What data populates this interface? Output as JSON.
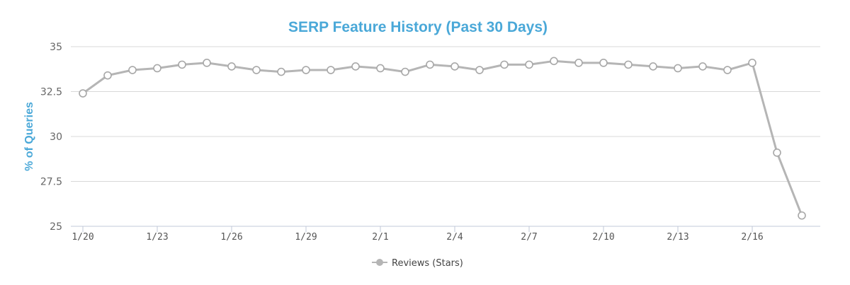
{
  "chart_data": {
    "type": "line",
    "title": "SERP Feature History (Past 30 Days)",
    "xlabel": "",
    "ylabel": "% of Queries",
    "ylim": [
      25,
      35
    ],
    "y_ticks": [
      "25",
      "27.5",
      "30",
      "32.5",
      "35"
    ],
    "y_tick_values": [
      25,
      27.5,
      30,
      32.5,
      35
    ],
    "x_ticks": [
      "1/20",
      "1/23",
      "1/26",
      "1/29",
      "2/1",
      "2/4",
      "2/7",
      "2/10",
      "2/13",
      "2/16"
    ],
    "x_tick_indices": [
      0,
      3,
      6,
      9,
      12,
      15,
      18,
      21,
      24,
      27
    ],
    "grid": true,
    "legend_position": "bottom-center",
    "categories": [
      "1/20",
      "1/21",
      "1/22",
      "1/23",
      "1/24",
      "1/25",
      "1/26",
      "1/27",
      "1/28",
      "1/29",
      "1/30",
      "1/31",
      "2/1",
      "2/2",
      "2/3",
      "2/4",
      "2/5",
      "2/6",
      "2/7",
      "2/8",
      "2/9",
      "2/10",
      "2/11",
      "2/12",
      "2/13",
      "2/14",
      "2/15",
      "2/16",
      "2/17",
      "2/18"
    ],
    "series": [
      {
        "name": "Reviews (Stars)",
        "color": "#b5b5b5",
        "values": [
          32.4,
          33.4,
          33.7,
          33.8,
          34.0,
          34.1,
          33.9,
          33.7,
          33.6,
          33.7,
          33.7,
          33.9,
          33.8,
          33.6,
          34.0,
          33.9,
          33.7,
          34.0,
          34.0,
          34.2,
          34.1,
          34.1,
          34.0,
          33.9,
          33.8,
          33.9,
          33.7,
          34.1,
          29.1,
          25.6
        ]
      }
    ]
  }
}
